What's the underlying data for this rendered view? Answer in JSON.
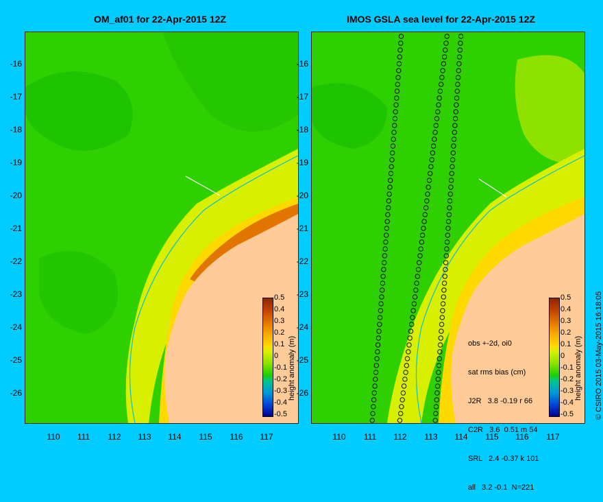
{
  "left_panel": {
    "title": "OM_af01 for 22-Apr-2015 12Z",
    "colorbar": {
      "label": "height anomaly (m)",
      "ticks": [
        "0.5",
        "0.4",
        "0.3",
        "0.2",
        "0.1",
        "0",
        "-0.1",
        "-0.2",
        "-0.3",
        "-0.4",
        "-0.5"
      ]
    }
  },
  "right_panel": {
    "title": "IMOS GSLA sea level  for 22-Apr-2015 12Z",
    "stats": {
      "header1": "obs +-2d, oi0",
      "header2": "sat rms bias (cm)",
      "rows": [
        "J2R   3.8 -0.19 r 66",
        "C2R   3.6  0.51 m 54",
        "SRL   2.4 -0.37 k 101",
        "all   3.2 -0.1  N=221"
      ]
    },
    "colorbar": {
      "label": "height anomaly (m)",
      "ticks": [
        "0.5",
        "0.4",
        "0.3",
        "0.2",
        "0.1",
        "0",
        "-0.1",
        "-0.2",
        "-0.3",
        "-0.4",
        "-0.5"
      ]
    }
  },
  "axes": {
    "y_ticks": [
      "-16",
      "-17",
      "-18",
      "-19",
      "-20",
      "-21",
      "-22",
      "-23",
      "-24",
      "-25",
      "-26"
    ],
    "x_ticks": [
      "110",
      "111",
      "112",
      "113",
      "114",
      "115",
      "116",
      "117"
    ]
  },
  "credit": "© CSIRO 2015   03-May-2015 16:18:05",
  "colors": {
    "background": "#00ccff",
    "land": "#ffcc99",
    "ocean_base": "#2fd000"
  }
}
